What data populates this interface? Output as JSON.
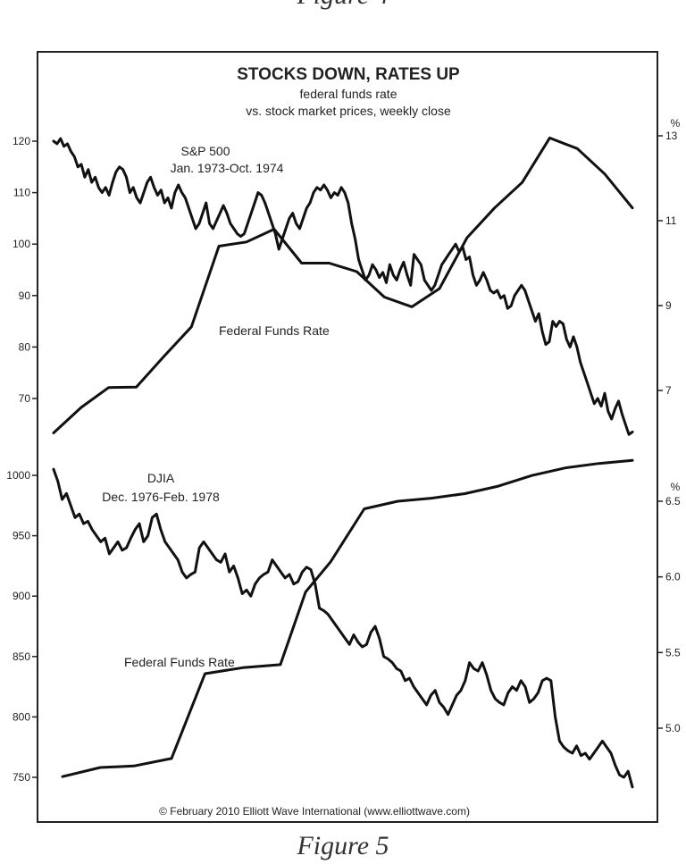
{
  "figure_caption_top": "Figure 4",
  "figure_caption_bottom": "Figure 5",
  "chart_data": [
    {
      "type": "line",
      "title": "STOCKS DOWN, RATES UP",
      "subtitle_line1": "federal funds rate",
      "subtitle_line2": "vs. stock market prices, weekly close",
      "copyright": "© February 2010 Elliott Wave International (www.elliottwave.com)",
      "left_axis": {
        "ticks": [
          120,
          110,
          100,
          90,
          80,
          70
        ]
      },
      "right_axis": {
        "unit": "%",
        "ticks": [
          "13",
          "11",
          "9",
          "7"
        ]
      },
      "series": [
        {
          "name": "S&P 500",
          "label_line1": "S&P 500",
          "label_line2": "Jan. 1973-Oct. 1974",
          "axis": "left",
          "values": [
            120,
            119.5,
            120.5,
            119,
            119.5,
            118,
            117,
            115,
            115.5,
            113,
            114.5,
            112,
            113,
            111,
            110,
            111,
            109.5,
            112,
            114,
            115,
            114.5,
            113,
            110,
            111,
            109,
            108,
            110,
            112,
            113,
            111,
            109.5,
            110.5,
            108,
            109,
            107,
            110,
            111.5,
            110,
            109,
            107,
            105,
            103,
            104,
            106,
            108,
            104,
            103,
            104.5,
            106,
            107.5,
            106,
            104,
            103,
            102,
            101.5,
            102,
            104,
            106,
            108,
            110,
            109.5,
            108,
            106,
            104,
            102,
            99,
            101,
            103,
            105,
            106,
            104,
            103,
            105,
            107,
            108,
            110,
            111,
            110.5,
            111.5,
            110.5,
            109,
            110,
            109.5,
            111,
            110,
            108,
            104,
            101,
            97,
            95,
            93,
            94,
            96,
            95,
            93.5,
            94.5,
            92.5,
            96,
            94,
            93,
            95,
            96.5,
            94,
            92,
            98,
            97,
            96,
            93,
            92,
            91,
            92,
            94,
            96,
            97,
            98,
            99,
            100,
            98.5,
            99.5,
            97,
            97.5,
            94,
            92,
            93,
            94.5,
            93,
            91,
            90.5,
            91,
            89.5,
            90,
            87.5,
            88,
            90,
            91,
            92,
            91,
            89,
            87,
            85,
            86.5,
            83,
            80.5,
            81,
            85,
            84,
            85,
            84.5,
            81.5,
            80,
            82,
            80,
            77,
            75,
            73,
            71,
            69,
            70,
            68.5,
            71,
            67.5,
            66,
            68,
            69.5,
            67,
            65,
            63,
            63.5
          ]
        },
        {
          "name": "Federal Funds Rate",
          "axis": "right",
          "x_index": [
            0,
            6,
            12,
            18,
            24,
            30,
            36,
            42,
            48,
            54,
            60,
            66,
            72,
            78,
            84,
            90,
            96,
            102,
            108,
            114,
            120,
            126,
            130,
            136,
            140,
            146,
            152,
            158
          ],
          "values": [
            6.0,
            6.6,
            7.07,
            7.08,
            7.8,
            8.5,
            10.4,
            10.5,
            10.8,
            10.0,
            10.0,
            9.8,
            9.2,
            8.97,
            9.4,
            10.6,
            11.3,
            11.9,
            12.95,
            12.7,
            12.1,
            11.3,
            11.3,
            11.3,
            11.3,
            11.3,
            11.3,
            11.3
          ]
        }
      ]
    },
    {
      "type": "line",
      "left_axis": {
        "ticks": [
          1000,
          950,
          900,
          850,
          800,
          750
        ]
      },
      "right_axis": {
        "unit": "%",
        "ticks": [
          "6.5",
          "6.0",
          "5.5",
          "5.0"
        ]
      },
      "series": [
        {
          "name": "DJIA",
          "label_line1": "DJIA",
          "label_line2": "Dec. 1976-Feb. 1978",
          "axis": "left",
          "values": [
            1005,
            995,
            980,
            985,
            975,
            965,
            968,
            960,
            962,
            955,
            950,
            945,
            948,
            935,
            940,
            945,
            938,
            940,
            948,
            955,
            960,
            945,
            950,
            965,
            968,
            955,
            945,
            940,
            935,
            930,
            920,
            915,
            918,
            920,
            940,
            945,
            940,
            935,
            930,
            928,
            935,
            920,
            925,
            915,
            902,
            905,
            900,
            910,
            915,
            918,
            920,
            930,
            925,
            920,
            915,
            918,
            910,
            912,
            920,
            924,
            922,
            910,
            890,
            888,
            885,
            880,
            875,
            870,
            865,
            860,
            868,
            862,
            858,
            860,
            870,
            875,
            865,
            850,
            848,
            845,
            840,
            838,
            830,
            832,
            825,
            820,
            815,
            810,
            818,
            822,
            812,
            808,
            802,
            810,
            818,
            822,
            830,
            845,
            840,
            838,
            845,
            835,
            822,
            815,
            812,
            810,
            820,
            825,
            822,
            830,
            825,
            812,
            815,
            820,
            830,
            832,
            830,
            800,
            780,
            775,
            772,
            770,
            776,
            768,
            770,
            765,
            770,
            775,
            780,
            775,
            770,
            760,
            752,
            750,
            755,
            742
          ]
        },
        {
          "name": "Federal Funds Rate",
          "axis": "right",
          "x_index": [
            0,
            9,
            17,
            26,
            34,
            43,
            52,
            58,
            64,
            72,
            80,
            88,
            96,
            104,
            112,
            120,
            128,
            136
          ],
          "values": [
            4.68,
            4.74,
            4.75,
            4.8,
            5.36,
            5.4,
            5.42,
            5.9,
            6.1,
            6.45,
            6.5,
            6.52,
            6.55,
            6.6,
            6.67,
            6.72,
            6.75,
            6.77
          ]
        }
      ]
    }
  ]
}
